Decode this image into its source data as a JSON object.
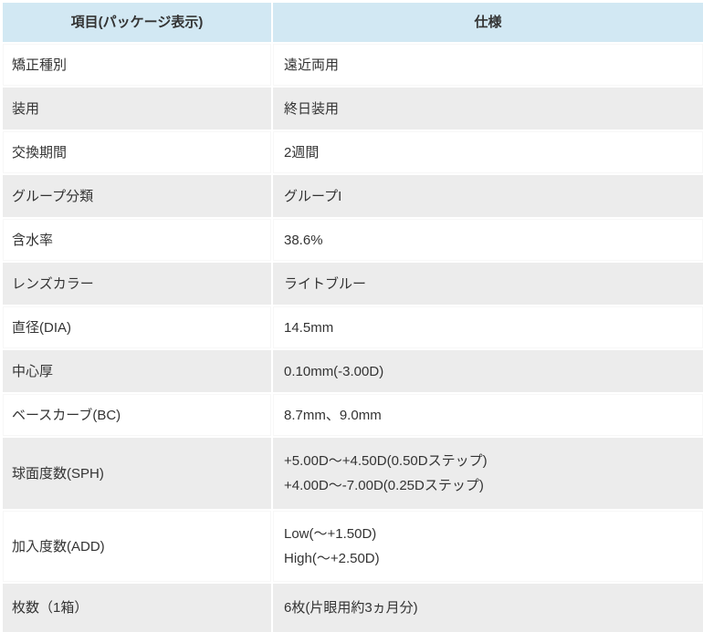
{
  "colors": {
    "header_bg": "#d2e8f3",
    "alt_row_bg": "#ececec",
    "text": "#333333"
  },
  "table": {
    "headers": {
      "item": "項目(パッケージ表示)",
      "spec": "仕様"
    },
    "rows": [
      {
        "label": "矯正種別",
        "value": "遠近両用"
      },
      {
        "label": "装用",
        "value": "終日装用"
      },
      {
        "label": "交換期間",
        "value": "2週間"
      },
      {
        "label": "グループ分類",
        "value": "グループI"
      },
      {
        "label": "含水率",
        "value": "38.6%"
      },
      {
        "label": "レンズカラー",
        "value": "ライトブルー"
      },
      {
        "label": "直径(DIA)",
        "value": "14.5mm"
      },
      {
        "label": "中心厚",
        "value": "0.10mm(-3.00D)"
      },
      {
        "label": "ベースカーブ(BC)",
        "value": "8.7mm、9.0mm"
      },
      {
        "label": "球面度数(SPH)",
        "value": "+5.00D～+4.50D(0.50Dステップ)\n+4.00D～-7.00D(0.25Dステップ)"
      },
      {
        "label": "加入度数(ADD)",
        "value": "Low(～+1.50D)\nHigh(～+2.50D)"
      },
      {
        "label": "枚数（1箱）",
        "value": "6枚(片眼用約3ヵ月分)"
      }
    ]
  }
}
